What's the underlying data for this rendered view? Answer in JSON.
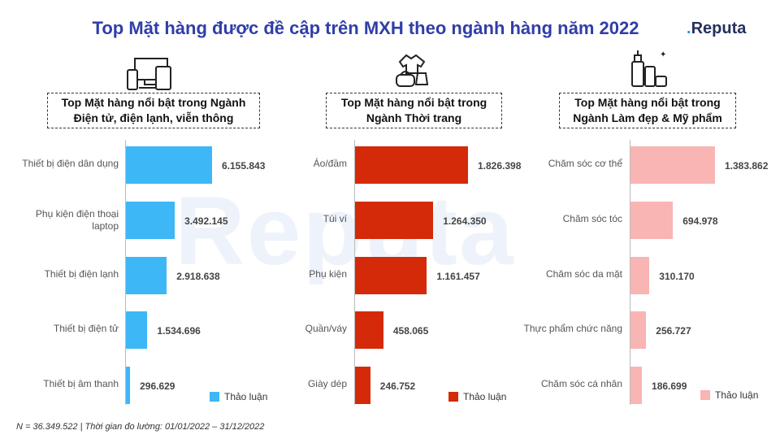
{
  "title": "Top Mặt hàng được đề cập trên MXH theo ngành hàng năm 2022",
  "brand": {
    "prefix": ".",
    "name": "Reputa"
  },
  "watermark": "Reputa",
  "footnote": "N = 36.349.522 | Thời gian đo lường: 01/01/2022 – 31/12/2022",
  "chart_data": [
    {
      "type": "bar",
      "orientation": "horizontal",
      "title": "Top Mặt hàng nổi bật trong Ngành\nĐiện tử, điện lạnh, viễn thông",
      "icon": "electronics-devices-icon",
      "color": "#3db7f5",
      "legend": "Thảo luận",
      "categories": [
        "Thiết bị điện dân dụng",
        "Phụ kiện điện thoại\nlaptop",
        "Thiết bị điện lạnh",
        "Thiết bị điện tử",
        "Thiết bị âm thanh"
      ],
      "values": [
        6155843,
        3492145,
        2918638,
        1534696,
        296629
      ],
      "value_labels": [
        "6.155.843",
        "3.492.145",
        "2.918.638",
        "1.534.696",
        "296.629"
      ]
    },
    {
      "type": "bar",
      "orientation": "horizontal",
      "title": "Top Mặt hàng nổi bật trong\nNgành Thời trang",
      "icon": "fashion-clothing-icon",
      "color": "#d42a0a",
      "legend": "Thảo luận",
      "categories": [
        "Áo/đầm",
        "Túi ví",
        "Phụ kiện",
        "Quần/váy",
        "Giày dép"
      ],
      "values": [
        1826398,
        1264350,
        1161457,
        458065,
        246752
      ],
      "value_labels": [
        "1.826.398",
        "1.264.350",
        "1.161.457",
        "458.065",
        "246.752"
      ]
    },
    {
      "type": "bar",
      "orientation": "horizontal",
      "title": "Top Mặt hàng nổi bật trong\nNgành Làm đẹp & Mỹ phẩm",
      "icon": "cosmetics-bottles-icon",
      "color": "#f9b4b4",
      "legend": "Thảo luận",
      "categories": [
        "Chăm sóc cơ thể",
        "Chăm sóc tóc",
        "Chăm sóc da mặt",
        "Thực phẩm chức năng",
        "Chăm sóc cá nhân"
      ],
      "values": [
        1383862,
        694978,
        310170,
        256727,
        186699
      ],
      "value_labels": [
        "1.383.862",
        "694.978",
        "310.170",
        "256.727",
        "186.699"
      ]
    }
  ]
}
